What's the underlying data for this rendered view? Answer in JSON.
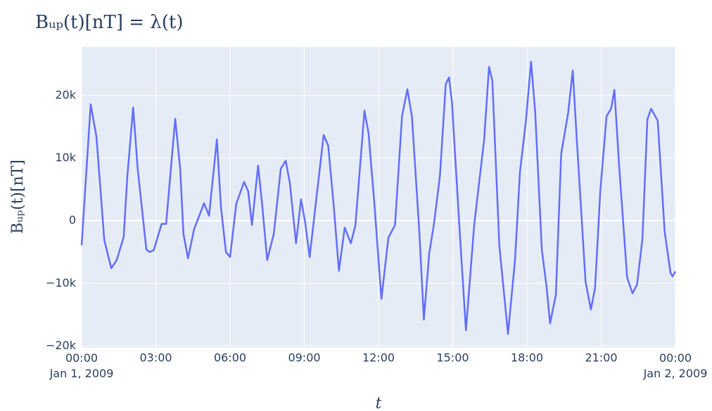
{
  "chart_data": {
    "type": "line",
    "title": "Bᵤₚ(t)[nT] = λ(t)",
    "x_label": "t",
    "y_label": "Bᵤₚ(t)[nT]",
    "color": "#636efa",
    "plot_background": "#e5ecf6",
    "grid": true,
    "xlim": [
      "2009-01-01 00:00",
      "2009-01-02 00:00"
    ],
    "ylim": [
      -20300,
      27750
    ],
    "xticks": [
      {
        "value": "2009-01-01 00:00",
        "label": "00:00\nJan 1, 2009"
      },
      {
        "value": "2009-01-01 03:00",
        "label": "03:00"
      },
      {
        "value": "2009-01-01 06:00",
        "label": "06:00"
      },
      {
        "value": "2009-01-01 09:00",
        "label": "09:00"
      },
      {
        "value": "2009-01-01 12:00",
        "label": "12:00"
      },
      {
        "value": "2009-01-01 15:00",
        "label": "15:00"
      },
      {
        "value": "2009-01-01 18:00",
        "label": "18:00"
      },
      {
        "value": "2009-01-01 21:00",
        "label": "21:00"
      },
      {
        "value": "2009-01-02 00:00",
        "label": "00:00\nJan 2, 2009"
      }
    ],
    "yticks": [
      {
        "value": -20000,
        "label": "−20k"
      },
      {
        "value": -10000,
        "label": "−10k"
      },
      0,
      {
        "value": 10000,
        "label": "10k"
      },
      {
        "value": 20000,
        "label": "20k"
      }
    ],
    "x": [
      "2009-01-01 00:00",
      "2009-01-01 00:22",
      "2009-01-01 00:36",
      "2009-01-01 00:55",
      "2009-01-01 01:12",
      "2009-01-01 01:25",
      "2009-01-01 01:42",
      "2009-01-01 01:51",
      "2009-01-01 02:05",
      "2009-01-01 02:16",
      "2009-01-01 02:37",
      "2009-01-01 02:45",
      "2009-01-01 02:55",
      "2009-01-01 03:14",
      "2009-01-01 03:25",
      "2009-01-01 03:35",
      "2009-01-01 03:47",
      "2009-01-01 03:59",
      "2009-01-01 04:07",
      "2009-01-01 04:18",
      "2009-01-01 04:33",
      "2009-01-01 04:57",
      "2009-01-01 05:09",
      "2009-01-01 05:28",
      "2009-01-01 05:38",
      "2009-01-01 05:50",
      "2009-01-01 06:00",
      "2009-01-01 06:15",
      "2009-01-01 06:34",
      "2009-01-01 06:44",
      "2009-01-01 06:53",
      "2009-01-01 07:08",
      "2009-01-01 07:18",
      "2009-01-01 07:30",
      "2009-01-01 07:46",
      "2009-01-01 08:03",
      "2009-01-01 08:15",
      "2009-01-01 08:25",
      "2009-01-01 08:40",
      "2009-01-01 08:52",
      "2009-01-01 09:02",
      "2009-01-01 09:13",
      "2009-01-01 09:30",
      "2009-01-01 09:47",
      "2009-01-01 09:58",
      "2009-01-01 10:11",
      "2009-01-01 10:24",
      "2009-01-01 10:38",
      "2009-01-01 10:53",
      "2009-01-01 11:04",
      "2009-01-01 11:26",
      "2009-01-01 11:36",
      "2009-01-01 11:50",
      "2009-01-01 12:07",
      "2009-01-01 12:24",
      "2009-01-01 12:40",
      "2009-01-01 12:57",
      "2009-01-01 13:10",
      "2009-01-01 13:21",
      "2009-01-01 13:39",
      "2009-01-01 13:50",
      "2009-01-01 14:03",
      "2009-01-01 14:14",
      "2009-01-01 14:29",
      "2009-01-01 14:43",
      "2009-01-01 14:51",
      "2009-01-01 14:58",
      "2009-01-01 15:18",
      "2009-01-01 15:32",
      "2009-01-01 15:52",
      "2009-01-01 16:07",
      "2009-01-01 16:16",
      "2009-01-01 16:28",
      "2009-01-01 16:36",
      "2009-01-01 16:53",
      "2009-01-01 17:14",
      "2009-01-01 17:31",
      "2009-01-01 17:43",
      "2009-01-01 17:57",
      "2009-01-01 18:10",
      "2009-01-01 18:20",
      "2009-01-01 18:36",
      "2009-01-01 18:48",
      "2009-01-01 18:56",
      "2009-01-01 19:10",
      "2009-01-01 19:23",
      "2009-01-01 19:40",
      "2009-01-01 19:51",
      "2009-01-01 20:01",
      "2009-01-01 20:22",
      "2009-01-01 20:35",
      "2009-01-01 20:45",
      "2009-01-01 20:58",
      "2009-01-01 21:13",
      "2009-01-01 21:24",
      "2009-01-01 21:32",
      "2009-01-01 21:44",
      "2009-01-01 22:03",
      "2009-01-01 22:16",
      "2009-01-01 22:27",
      "2009-01-01 22:40",
      "2009-01-01 22:52",
      "2009-01-01 23:01",
      "2009-01-01 23:17",
      "2009-01-01 23:34",
      "2009-01-01 23:48",
      "2009-01-01 23:53",
      "2009-01-02 00:00"
    ],
    "values": [
      -3900,
      18600,
      13400,
      -3100,
      -7600,
      -6300,
      -2600,
      7200,
      18100,
      8300,
      -4600,
      -5000,
      -4700,
      -500,
      -500,
      7200,
      16300,
      8300,
      -2100,
      -6000,
      -1300,
      2800,
      800,
      13000,
      2100,
      -5000,
      -5800,
      2700,
      6200,
      4700,
      -700,
      8800,
      2500,
      -6300,
      -2100,
      8300,
      9600,
      6000,
      -3600,
      3400,
      -200,
      -5800,
      4000,
      13700,
      12000,
      2700,
      -8000,
      -1100,
      -3600,
      -700,
      17600,
      13900,
      2700,
      -12500,
      -2700,
      -700,
      16700,
      21000,
      16700,
      -1800,
      -15800,
      -5200,
      -700,
      7200,
      21800,
      22900,
      19000,
      -2900,
      -17500,
      -700,
      7800,
      12800,
      24600,
      22400,
      -4000,
      -18100,
      -6300,
      7800,
      15700,
      25400,
      17300,
      -4600,
      -10800,
      -16400,
      -11900,
      10700,
      17300,
      24000,
      12800,
      -9700,
      -14200,
      -10800,
      4900,
      16700,
      17900,
      20900,
      8300,
      -9100,
      -11600,
      -10200,
      -2900,
      16200,
      17900,
      16000,
      -1800,
      -8300,
      -8900,
      -8100
    ]
  }
}
